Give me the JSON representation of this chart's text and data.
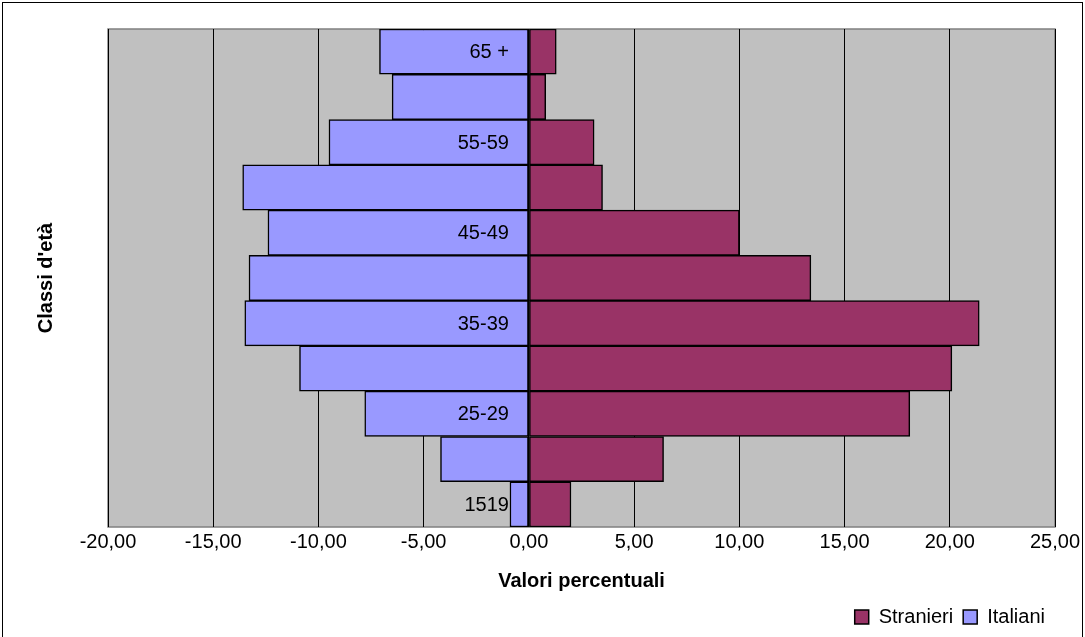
{
  "chart_data": {
    "type": "bar",
    "orientation": "horizontal",
    "stacked": true,
    "xlabel": "Valori percentuali",
    "ylabel": "Classi d'età",
    "categories": [
      "65 +",
      null,
      "55-59",
      null,
      "45-49",
      null,
      "35-39",
      null,
      "25-29",
      null,
      "1519"
    ],
    "series": [
      {
        "name": "Stranieri",
        "color": "#993366",
        "values": [
          1.3,
          0.8,
          3.1,
          3.5,
          10.0,
          13.4,
          21.4,
          20.1,
          18.1,
          6.4,
          2.0
        ]
      },
      {
        "name": "Italiani",
        "color": "#9999ff",
        "values": [
          -7.1,
          -6.5,
          -9.5,
          -13.6,
          -12.4,
          -13.3,
          -13.5,
          -10.9,
          -7.8,
          -4.2,
          -0.9
        ]
      }
    ],
    "xlim": [
      -20,
      25
    ],
    "xticks": [
      {
        "value": -20,
        "label": "-20,00"
      },
      {
        "value": -15,
        "label": "-15,00"
      },
      {
        "value": -10,
        "label": "-10,00"
      },
      {
        "value": -5,
        "label": "-5,00"
      },
      {
        "value": 0,
        "label": "0,00"
      },
      {
        "value": 5,
        "label": "5,00"
      },
      {
        "value": 10,
        "label": "10,00"
      },
      {
        "value": 15,
        "label": "15,00"
      },
      {
        "value": 20,
        "label": "20,00"
      },
      {
        "value": 25,
        "label": "25,00"
      }
    ],
    "grid": "x",
    "legend": "bottom right"
  }
}
